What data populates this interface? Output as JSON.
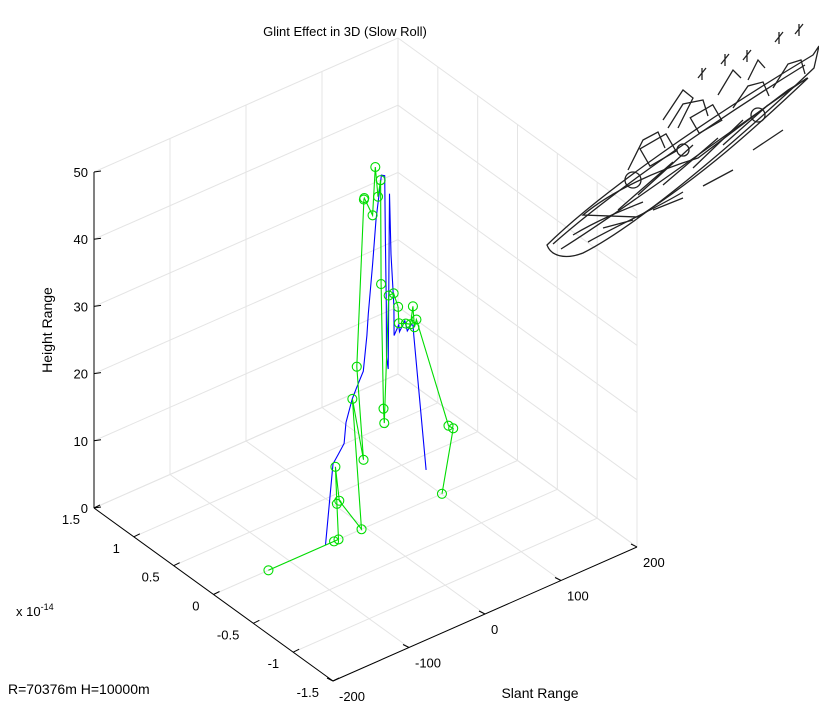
{
  "chart_data": {
    "type": "line",
    "title": "Glint Effect in 3D (Slow Roll)",
    "xlabel": "Slant Range",
    "ylabel": "",
    "zlabel": "Height Range",
    "y_exponent_label": "x 10",
    "y_exponent_power": "-14",
    "annotation": "R=70376m H=10000m",
    "xlim": [
      -200,
      200
    ],
    "ylim": [
      -1.5e-14,
      1.5e-14
    ],
    "zlim": [
      0,
      50
    ],
    "x_ticks": [
      {
        "value": -200,
        "label": "-200"
      },
      {
        "value": -100,
        "label": "-100"
      },
      {
        "value": 0,
        "label": "0"
      },
      {
        "value": 100,
        "label": "100"
      },
      {
        "value": 200,
        "label": "200"
      }
    ],
    "y_ticks": [
      {
        "value": -1.5,
        "label": "-1.5"
      },
      {
        "value": -1,
        "label": "-1"
      },
      {
        "value": -0.5,
        "label": "-0.5"
      },
      {
        "value": 0,
        "label": "0"
      },
      {
        "value": 0.5,
        "label": "0.5"
      },
      {
        "value": 1,
        "label": "1"
      },
      {
        "value": 1.5,
        "label": "1.5"
      }
    ],
    "z_ticks": [
      {
        "value": 0,
        "label": "0"
      },
      {
        "value": 10,
        "label": "10"
      },
      {
        "value": 20,
        "label": "20"
      },
      {
        "value": 30,
        "label": "30"
      },
      {
        "value": 40,
        "label": "40"
      },
      {
        "value": 50,
        "label": "50"
      }
    ],
    "grid": true,
    "series": [
      {
        "color": "#0000ff",
        "marker": "none",
        "points": [
          [
            -52.6,
            0,
            0
          ],
          [
            -42.7,
            0,
            11.6
          ],
          [
            -35.6,
            0,
            12.7
          ],
          [
            -28.1,
            0,
            13.9
          ],
          [
            -25.6,
            0,
            16.9
          ],
          [
            -17.5,
            0,
            20.0
          ],
          [
            -12.1,
            0,
            21.3
          ],
          [
            -2.9,
            0,
            23.4
          ],
          [
            1.8,
            0,
            28.5
          ],
          [
            3.7,
            0,
            31.6
          ],
          [
            9.4,
            0,
            38.7
          ],
          [
            13.8,
            0,
            45.1
          ],
          [
            20.9,
            0,
            51.4
          ],
          [
            25.2,
            0,
            51.1
          ],
          [
            26.2,
            0,
            41.4
          ],
          [
            27.4,
            0,
            31.8
          ],
          [
            27.6,
            0,
            24.0
          ],
          [
            29.9,
            0,
            22.1
          ],
          [
            31.6,
            0,
            48.1
          ],
          [
            33.6,
            0,
            39.0
          ],
          [
            37.4,
            0,
            31.1
          ],
          [
            37.6,
            0,
            26.7
          ],
          [
            43.8,
            0,
            28.0
          ],
          [
            44.8,
            0,
            26.9
          ],
          [
            51.7,
            0,
            28.2
          ],
          [
            55.0,
            0,
            26.5
          ],
          [
            60.4,
            0,
            27.2
          ],
          [
            62.5,
            0,
            27.0
          ],
          [
            63.6,
            0,
            25.4
          ],
          [
            79.7,
            0,
            4.6
          ]
        ]
      },
      {
        "color": "#00dd00",
        "marker": "circle",
        "points": [
          [
            -127.7,
            0,
            0
          ],
          [
            -41.4,
            0,
            0
          ],
          [
            -35.5,
            0,
            0
          ],
          [
            -37.6,
            0,
            5.4
          ],
          [
            -39.6,
            0,
            11.0
          ],
          [
            -34.5,
            0,
            5.7
          ],
          [
            -5.2,
            0,
            0
          ],
          [
            -17.3,
            0,
            20.0
          ],
          [
            -2.6,
            0,
            10.2
          ],
          [
            -11.5,
            0,
            24.5
          ],
          [
            -2.1,
            0,
            48.9
          ],
          [
            -1.6,
            0,
            49.1
          ],
          [
            9.3,
            0,
            46.0
          ],
          [
            12.9,
            0,
            53.0
          ],
          [
            16.5,
            0,
            48.4
          ],
          [
            19.9,
            0,
            50.7
          ],
          [
            20.5,
            0,
            35.2
          ],
          [
            23.7,
            0,
            16.5
          ],
          [
            24.7,
            0,
            14.3
          ],
          [
            30.5,
            0,
            33.0
          ],
          [
            37.0,
            0,
            33.0
          ],
          [
            42.9,
            0,
            30.7
          ],
          [
            44.0,
            0,
            28.2
          ],
          [
            53.0,
            0,
            27.7
          ],
          [
            59.2,
            0,
            27.3
          ],
          [
            62.4,
            0,
            29.8
          ],
          [
            64.4,
            0,
            26.6
          ],
          [
            67.0,
            0,
            27.6
          ],
          [
            109.2,
            0,
            9.7
          ],
          [
            115.4,
            0,
            9.0
          ],
          [
            100.6,
            0,
            0
          ]
        ]
      }
    ]
  },
  "inset_picture": "battleship-outline"
}
